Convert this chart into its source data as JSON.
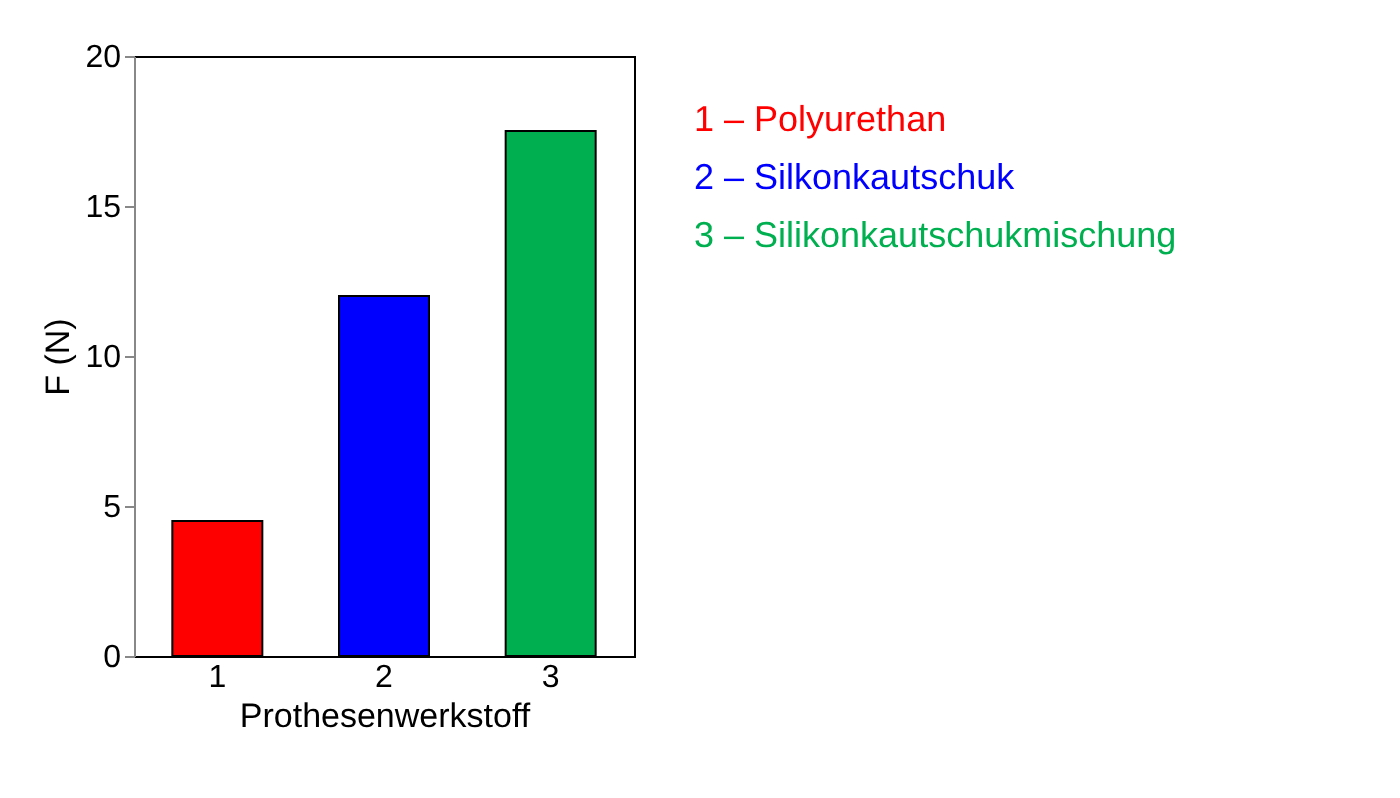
{
  "chart_data": {
    "type": "bar",
    "xlabel": "Prothesenwerkstoff",
    "ylabel": "F (N)",
    "categories": [
      "1",
      "2",
      "3"
    ],
    "values": [
      4.5,
      12,
      17.5
    ],
    "colors": [
      "#ff0000",
      "#0000ff",
      "#00b050"
    ],
    "ylim": [
      0,
      20
    ],
    "yticks": [
      0,
      5,
      10,
      15,
      20
    ],
    "grid": false,
    "annotations": [
      "1 – Polyurethan",
      "2 – Silkonkautschuk",
      "3 – Silikonkautschukmischung"
    ]
  }
}
